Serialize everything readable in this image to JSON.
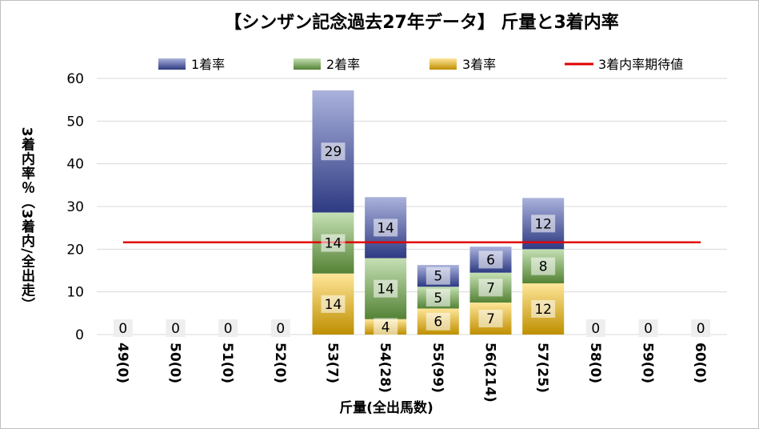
{
  "chart_data": {
    "type": "bar",
    "stacked": true,
    "title": "【シンザン記念過去27年データ】 斤量と3着内率",
    "xlabel": "斤量(全出馬数)",
    "ylabel": "3着内率％（3着内/全出走）",
    "ylim": [
      0,
      60
    ],
    "yticks": [
      0,
      10,
      20,
      30,
      40,
      50,
      60
    ],
    "categories": [
      "49(0)",
      "50(0)",
      "51(0)",
      "52(0)",
      "53(7)",
      "54(28)",
      "55(99)",
      "56(214)",
      "57(25)",
      "58(0)",
      "59(0)",
      "60(0)"
    ],
    "series": [
      {
        "name": "1着率",
        "values": [
          0,
          0,
          0,
          0,
          28.6,
          14.3,
          5.1,
          6.1,
          12.0,
          0,
          0,
          0
        ],
        "labels": [
          "0",
          "0",
          "0",
          "0",
          "29",
          "14",
          "5",
          "6",
          "12",
          "0",
          "0",
          "0"
        ]
      },
      {
        "name": "2着率",
        "values": [
          0,
          0,
          0,
          0,
          14.3,
          14.3,
          5.1,
          7.0,
          8.0,
          0,
          0,
          0
        ],
        "labels": [
          "",
          "",
          "",
          "",
          "14",
          "14",
          "5",
          "7",
          "8",
          "",
          "",
          ""
        ]
      },
      {
        "name": "3着率",
        "values": [
          0,
          0,
          0,
          0,
          14.3,
          3.6,
          6.1,
          7.5,
          12.0,
          0,
          0,
          0
        ],
        "labels": [
          "",
          "",
          "",
          "",
          "14",
          "4",
          "6",
          "7",
          "12",
          "",
          "",
          ""
        ]
      }
    ],
    "reference_line": {
      "name": "3着内率期待値",
      "value": 21.6
    },
    "colors": {
      "first": "#2e3a82",
      "first_light": "#aab2dc",
      "second": "#548235",
      "second_light": "#c5e0b4",
      "third": "#bf8f00",
      "third_light": "#ffe699",
      "reference": "#e00000",
      "grid": "#d9d9d9"
    }
  }
}
